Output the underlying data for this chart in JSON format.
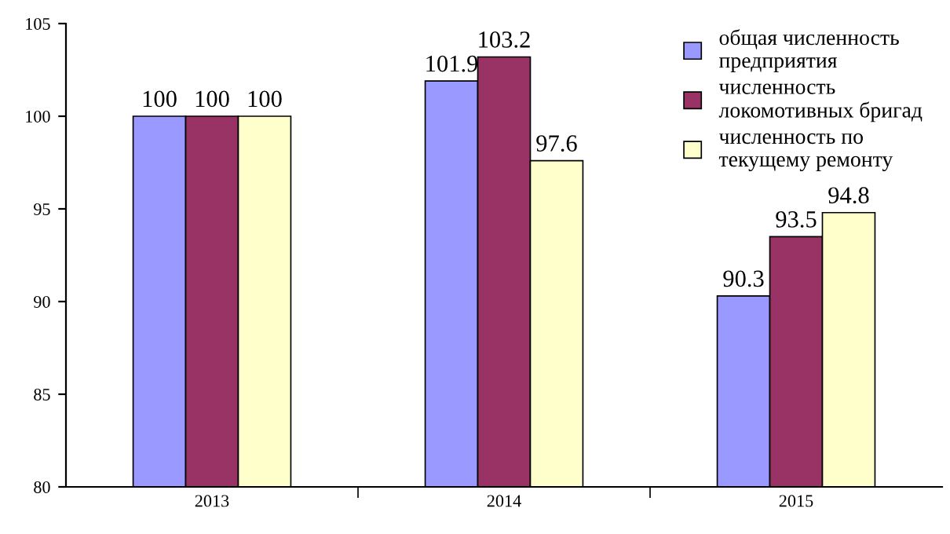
{
  "chart_data": {
    "type": "bar",
    "categories": [
      "2013",
      "2014",
      "2015"
    ],
    "series": [
      {
        "name": "общая численность предприятия",
        "color": "#9999ff",
        "values": [
          100,
          101.9,
          90.3
        ]
      },
      {
        "name": "численность локомотивных бригад",
        "color": "#993366",
        "values": [
          100,
          103.2,
          93.5
        ]
      },
      {
        "name": "численность по текущему ремонту",
        "color": "#ffffcc",
        "values": [
          100,
          97.6,
          94.8
        ]
      }
    ],
    "ylim": [
      80,
      105
    ],
    "yticks": [
      80,
      85,
      90,
      95,
      100,
      105
    ],
    "data_labels": true,
    "legend": "top right",
    "grid": false
  }
}
